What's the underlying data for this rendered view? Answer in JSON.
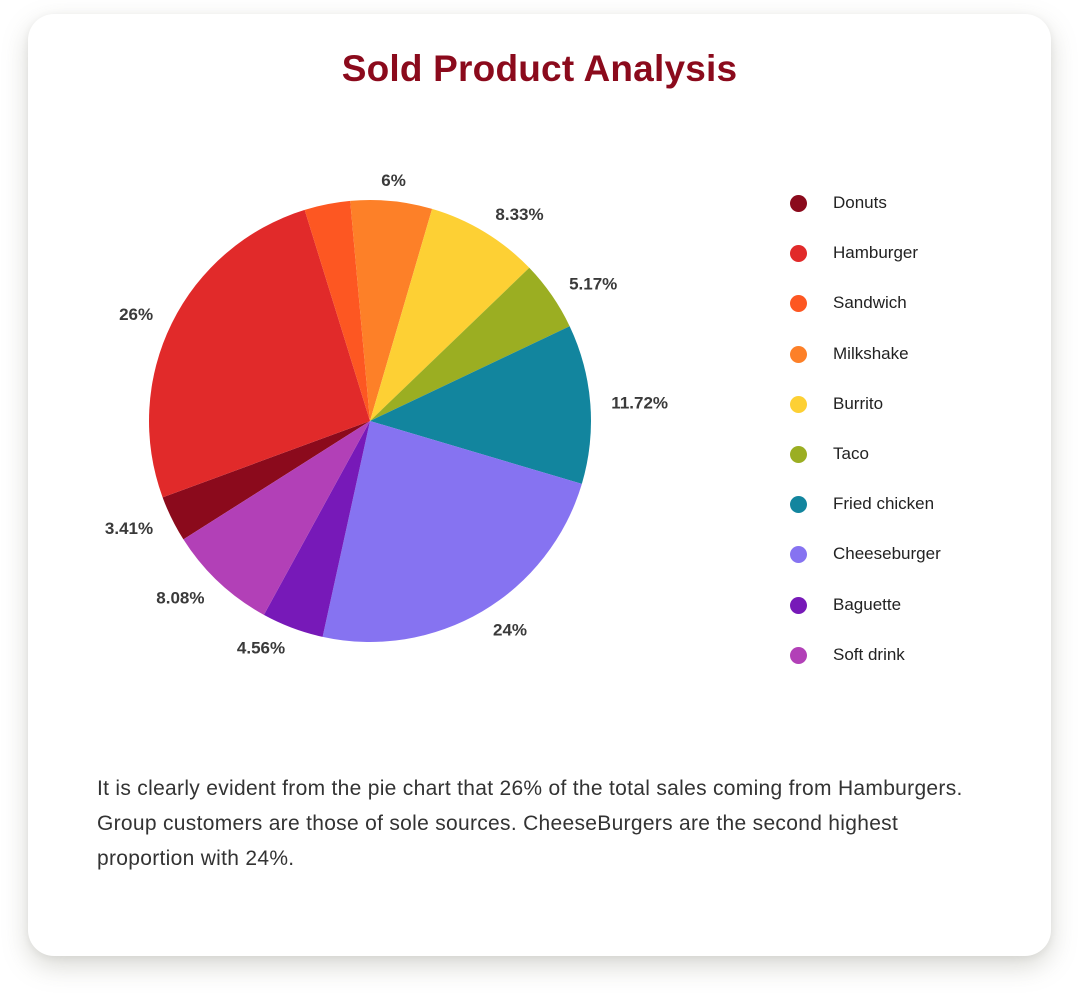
{
  "chart_data": {
    "type": "pie",
    "title": "Sold Product Analysis",
    "slices": [
      {
        "name": "Donuts",
        "value": 3.41,
        "label": "3.41%",
        "color": "#8b0a1c"
      },
      {
        "name": "Hamburger",
        "value": 26,
        "label": "26%",
        "color": "#e12a2a"
      },
      {
        "name": "Sandwich",
        "value": 3.37,
        "label": "",
        "color": "#fd5722"
      },
      {
        "name": "Milkshake",
        "value": 6,
        "label": "6%",
        "color": "#fd8028"
      },
      {
        "name": "Burrito",
        "value": 8.33,
        "label": "8.33%",
        "color": "#fdd034"
      },
      {
        "name": "Taco",
        "value": 5.17,
        "label": "5.17%",
        "color": "#9bae22"
      },
      {
        "name": "Fried chicken",
        "value": 11.72,
        "label": "11.72%",
        "color": "#12859e"
      },
      {
        "name": "Cheeseburger",
        "value": 24,
        "label": "24%",
        "color": "#8673f1"
      },
      {
        "name": "Baguette",
        "value": 4.56,
        "label": "4.56%",
        "color": "#7719b8"
      },
      {
        "name": "Soft drink",
        "value": 8.08,
        "label": "8.08%",
        "color": "#b240b7"
      }
    ],
    "legend_position": "right"
  },
  "caption": "It is clearly evident from the pie chart that 26% of the total sales coming from Hamburgers. Group customers are those of sole sources. CheeseBurgers are the second highest proportion with 24%."
}
